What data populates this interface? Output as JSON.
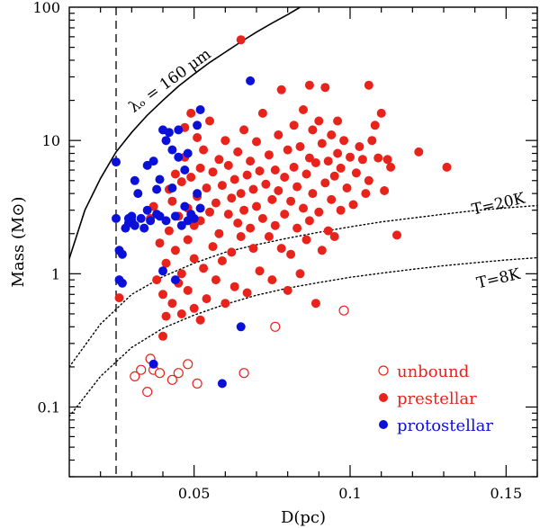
{
  "chart_data": {
    "type": "scatter",
    "title": "",
    "xlabel": "D(pc)",
    "ylabel": "Mass (M⊙)",
    "xlim": [
      0.01,
      0.16
    ],
    "ylim": [
      0.03,
      100
    ],
    "yscale": "log",
    "x_ticks": [
      {
        "value": 0.05,
        "label": "0.05"
      },
      {
        "value": 0.1,
        "label": "0.1"
      },
      {
        "value": 0.15,
        "label": "0.15"
      }
    ],
    "y_ticks": [
      {
        "value": 0.1,
        "label": "0.1"
      },
      {
        "value": 1,
        "label": "1"
      },
      {
        "value": 10,
        "label": "10"
      },
      {
        "value": 100,
        "label": "100"
      }
    ],
    "reference_line": {
      "x": 0.025,
      "style": "dashed"
    },
    "curves": [
      {
        "name": "lambda160",
        "label": "λₒ = 160 μm",
        "style": "solid",
        "points": [
          [
            0.01,
            1.3
          ],
          [
            0.015,
            3.0
          ],
          [
            0.02,
            5.2
          ],
          [
            0.025,
            8.2
          ],
          [
            0.03,
            11.5
          ],
          [
            0.035,
            15.5
          ],
          [
            0.04,
            20.0
          ],
          [
            0.045,
            25.5
          ],
          [
            0.05,
            31.5
          ],
          [
            0.055,
            38.5
          ],
          [
            0.06,
            46.0
          ],
          [
            0.065,
            55.0
          ],
          [
            0.07,
            65.0
          ],
          [
            0.075,
            76.0
          ],
          [
            0.08,
            88.0
          ],
          [
            0.084,
            100.0
          ]
        ]
      },
      {
        "name": "T20",
        "label": "T=20K",
        "style": "dotted",
        "points": [
          [
            0.01,
            0.2
          ],
          [
            0.02,
            0.42
          ],
          [
            0.03,
            0.7
          ],
          [
            0.04,
            0.95
          ],
          [
            0.05,
            1.2
          ],
          [
            0.06,
            1.45
          ],
          [
            0.07,
            1.65
          ],
          [
            0.08,
            1.85
          ],
          [
            0.09,
            2.05
          ],
          [
            0.1,
            2.25
          ],
          [
            0.11,
            2.45
          ],
          [
            0.12,
            2.62
          ],
          [
            0.13,
            2.8
          ],
          [
            0.14,
            2.98
          ],
          [
            0.15,
            3.12
          ],
          [
            0.16,
            3.25
          ]
        ]
      },
      {
        "name": "T8",
        "label": "T=8K",
        "style": "dotted",
        "points": [
          [
            0.01,
            0.085
          ],
          [
            0.02,
            0.17
          ],
          [
            0.03,
            0.28
          ],
          [
            0.04,
            0.39
          ],
          [
            0.05,
            0.49
          ],
          [
            0.06,
            0.59
          ],
          [
            0.07,
            0.69
          ],
          [
            0.08,
            0.78
          ],
          [
            0.09,
            0.86
          ],
          [
            0.1,
            0.94
          ],
          [
            0.11,
            1.01
          ],
          [
            0.12,
            1.08
          ],
          [
            0.13,
            1.15
          ],
          [
            0.14,
            1.21
          ],
          [
            0.15,
            1.27
          ],
          [
            0.16,
            1.32
          ]
        ]
      }
    ],
    "series": [
      {
        "name": "unbound",
        "color": "#e8231b",
        "marker": "open-circle",
        "points": [
          [
            0.031,
            0.17
          ],
          [
            0.033,
            0.19
          ],
          [
            0.035,
            0.13
          ],
          [
            0.036,
            0.23
          ],
          [
            0.037,
            0.19
          ],
          [
            0.039,
            0.18
          ],
          [
            0.043,
            0.16
          ],
          [
            0.045,
            0.18
          ],
          [
            0.048,
            0.21
          ],
          [
            0.051,
            0.15
          ],
          [
            0.066,
            0.18
          ],
          [
            0.076,
            0.4
          ],
          [
            0.098,
            0.53
          ]
        ]
      },
      {
        "name": "prestellar",
        "color": "#e8231b",
        "marker": "filled-circle",
        "points": [
          [
            0.026,
            0.66
          ],
          [
            0.065,
            57
          ],
          [
            0.036,
            2.6
          ],
          [
            0.037,
            3.2
          ],
          [
            0.038,
            0.9
          ],
          [
            0.039,
            1.7
          ],
          [
            0.04,
            0.7
          ],
          [
            0.04,
            0.34
          ],
          [
            0.041,
            0.48
          ],
          [
            0.041,
            1.2
          ],
          [
            0.042,
            2.1
          ],
          [
            0.042,
            4.3
          ],
          [
            0.043,
            3.5
          ],
          [
            0.043,
            0.6
          ],
          [
            0.044,
            1.5
          ],
          [
            0.044,
            5.6
          ],
          [
            0.045,
            2.7
          ],
          [
            0.045,
            0.85
          ],
          [
            0.046,
            4.9
          ],
          [
            0.046,
            1.0
          ],
          [
            0.046,
            0.5
          ],
          [
            0.047,
            12.5
          ],
          [
            0.047,
            7.5
          ],
          [
            0.048,
            3.1
          ],
          [
            0.048,
            1.8
          ],
          [
            0.048,
            0.75
          ],
          [
            0.049,
            16
          ],
          [
            0.049,
            5.3
          ],
          [
            0.05,
            2.3
          ],
          [
            0.05,
            0.55
          ],
          [
            0.05,
            1.3
          ],
          [
            0.051,
            10.5
          ],
          [
            0.051,
            3.8
          ],
          [
            0.052,
            6.2
          ],
          [
            0.052,
            2.5
          ],
          [
            0.052,
            0.45
          ],
          [
            0.053,
            8.5
          ],
          [
            0.053,
            1.1
          ],
          [
            0.054,
            4.4
          ],
          [
            0.054,
            0.65
          ],
          [
            0.055,
            2.9
          ],
          [
            0.055,
            14
          ],
          [
            0.056,
            5.8
          ],
          [
            0.056,
            1.6
          ],
          [
            0.057,
            3.4
          ],
          [
            0.057,
            0.9
          ],
          [
            0.058,
            7.2
          ],
          [
            0.058,
            2.0
          ],
          [
            0.059,
            4.6
          ],
          [
            0.059,
            1.25
          ],
          [
            0.06,
            10
          ],
          [
            0.06,
            0.6
          ],
          [
            0.061,
            2.8
          ],
          [
            0.061,
            6.5
          ],
          [
            0.062,
            3.7
          ],
          [
            0.062,
            1.45
          ],
          [
            0.063,
            5.1
          ],
          [
            0.063,
            0.8
          ],
          [
            0.064,
            8.2
          ],
          [
            0.064,
            2.4
          ],
          [
            0.065,
            4.0
          ],
          [
            0.065,
            1.9
          ],
          [
            0.066,
            12
          ],
          [
            0.066,
            3.0
          ],
          [
            0.067,
            5.5
          ],
          [
            0.067,
            0.72
          ],
          [
            0.068,
            2.2
          ],
          [
            0.068,
            7.0
          ],
          [
            0.069,
            4.3
          ],
          [
            0.069,
            1.55
          ],
          [
            0.07,
            9.8
          ],
          [
            0.07,
            3.2
          ],
          [
            0.071,
            5.9
          ],
          [
            0.071,
            1.05
          ],
          [
            0.072,
            2.6
          ],
          [
            0.072,
            16
          ],
          [
            0.073,
            4.7
          ],
          [
            0.074,
            7.8
          ],
          [
            0.074,
            1.9
          ],
          [
            0.075,
            3.6
          ],
          [
            0.075,
            0.9
          ],
          [
            0.076,
            6.0
          ],
          [
            0.076,
            2.3
          ],
          [
            0.077,
            11
          ],
          [
            0.077,
            4.2
          ],
          [
            0.078,
            1.55
          ],
          [
            0.078,
            24
          ],
          [
            0.079,
            5.3
          ],
          [
            0.079,
            2.8
          ],
          [
            0.08,
            8.5
          ],
          [
            0.08,
            0.75
          ],
          [
            0.081,
            3.5
          ],
          [
            0.081,
            1.4
          ],
          [
            0.082,
            13
          ],
          [
            0.082,
            6.3
          ],
          [
            0.083,
            2.2
          ],
          [
            0.083,
            4.5
          ],
          [
            0.084,
            9.0
          ],
          [
            0.084,
            1.0
          ],
          [
            0.085,
            3.1
          ],
          [
            0.085,
            17
          ],
          [
            0.086,
            5.6
          ],
          [
            0.086,
            1.8
          ],
          [
            0.087,
            26
          ],
          [
            0.087,
            7.4
          ],
          [
            0.087,
            2.5
          ],
          [
            0.088,
            12
          ],
          [
            0.088,
            4.0
          ],
          [
            0.089,
            0.6
          ],
          [
            0.089,
            6.8
          ],
          [
            0.09,
            2.9
          ],
          [
            0.09,
            14
          ],
          [
            0.091,
            9.5
          ],
          [
            0.091,
            1.5
          ],
          [
            0.092,
            4.8
          ],
          [
            0.092,
            25
          ],
          [
            0.093,
            7.0
          ],
          [
            0.093,
            2.1
          ],
          [
            0.094,
            11
          ],
          [
            0.094,
            3.6
          ],
          [
            0.095,
            5.4
          ],
          [
            0.095,
            1.9
          ],
          [
            0.096,
            8.0
          ],
          [
            0.096,
            14
          ],
          [
            0.097,
            3.0
          ],
          [
            0.097,
            6.2
          ],
          [
            0.098,
            10
          ],
          [
            0.099,
            4.4
          ],
          [
            0.1,
            7.5
          ],
          [
            0.101,
            3.3
          ],
          [
            0.102,
            5.7
          ],
          [
            0.103,
            9.0
          ],
          [
            0.104,
            7.2
          ],
          [
            0.105,
            4.0
          ],
          [
            0.106,
            26
          ],
          [
            0.106,
            5.0
          ],
          [
            0.107,
            10
          ],
          [
            0.108,
            13
          ],
          [
            0.109,
            7.4
          ],
          [
            0.11,
            16
          ],
          [
            0.111,
            4.2
          ],
          [
            0.112,
            7.2
          ],
          [
            0.113,
            6.3
          ],
          [
            0.115,
            1.95
          ],
          [
            0.122,
            8.2
          ],
          [
            0.131,
            6.3
          ]
        ]
      },
      {
        "name": "protostellar",
        "color": "#0b10d9",
        "marker": "filled-circle",
        "points": [
          [
            0.025,
            6.9
          ],
          [
            0.025,
            2.6
          ],
          [
            0.026,
            1.5
          ],
          [
            0.026,
            0.9
          ],
          [
            0.027,
            1.4
          ],
          [
            0.027,
            0.85
          ],
          [
            0.028,
            2.2
          ],
          [
            0.029,
            2.6
          ],
          [
            0.029,
            2.4
          ],
          [
            0.03,
            2.7
          ],
          [
            0.03,
            2.5
          ],
          [
            0.031,
            5.0
          ],
          [
            0.031,
            2.3
          ],
          [
            0.032,
            4.0
          ],
          [
            0.033,
            2.6
          ],
          [
            0.034,
            2.2
          ],
          [
            0.035,
            6.5
          ],
          [
            0.035,
            3.0
          ],
          [
            0.036,
            2.5
          ],
          [
            0.037,
            7.0
          ],
          [
            0.037,
            0.21
          ],
          [
            0.038,
            4.3
          ],
          [
            0.038,
            2.8
          ],
          [
            0.039,
            5.1
          ],
          [
            0.039,
            2.7
          ],
          [
            0.04,
            12
          ],
          [
            0.04,
            1.05
          ],
          [
            0.041,
            10
          ],
          [
            0.041,
            2.5
          ],
          [
            0.042,
            11.5
          ],
          [
            0.043,
            8.5
          ],
          [
            0.043,
            4.4
          ],
          [
            0.044,
            2.7
          ],
          [
            0.044,
            0.9
          ],
          [
            0.045,
            12
          ],
          [
            0.045,
            7.5
          ],
          [
            0.046,
            2.3
          ],
          [
            0.047,
            6.0
          ],
          [
            0.047,
            3.2
          ],
          [
            0.048,
            8.0
          ],
          [
            0.048,
            2.5
          ],
          [
            0.049,
            2.8
          ],
          [
            0.05,
            2.6
          ],
          [
            0.051,
            13
          ],
          [
            0.051,
            4.0
          ],
          [
            0.052,
            17
          ],
          [
            0.052,
            3.1
          ],
          [
            0.059,
            0.15
          ],
          [
            0.065,
            0.4
          ],
          [
            0.068,
            28
          ]
        ]
      }
    ],
    "legend": {
      "position": "bottom-right",
      "entries": [
        {
          "label": "unbound",
          "color": "#e8231b",
          "marker": "open-circle"
        },
        {
          "label": "prestellar",
          "color": "#e8231b",
          "marker": "filled-circle"
        },
        {
          "label": "protostellar",
          "color": "#0b10d9",
          "marker": "filled-circle"
        }
      ]
    }
  }
}
